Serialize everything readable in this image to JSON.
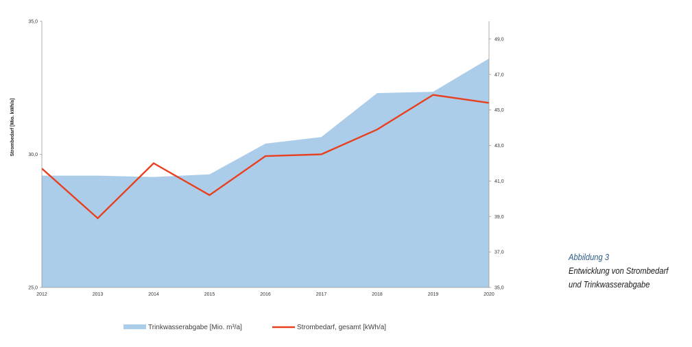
{
  "chart_data": {
    "type": "area",
    "x": [
      "2012",
      "2013",
      "2014",
      "2015",
      "2016",
      "2017",
      "2018",
      "2019",
      "2020"
    ],
    "ylabel": "Strombedarf [Mio. kWh/a]",
    "ylim_left": [
      25,
      35
    ],
    "yticks_left": [
      "25,0",
      "30,0",
      "35,0"
    ],
    "ylim_right": [
      35,
      50
    ],
    "yticks_right": [
      "35,0",
      "37,0",
      "39,0",
      "41,0",
      "43,0",
      "45,0",
      "47,0",
      "49,0"
    ],
    "grid": false,
    "legend_position": "bottom",
    "series": [
      {
        "name": "Trinkwasserabgabe [Mio. m³/a]",
        "type": "area",
        "axis": "left",
        "color": "#abcde9",
        "values": [
          29.2,
          29.2,
          29.15,
          29.25,
          30.4,
          30.65,
          32.3,
          32.35,
          33.6
        ]
      },
      {
        "name": "Strombedarf, gesamt [kWh/a]",
        "type": "line",
        "axis": "right",
        "color": "#e8401e",
        "values": [
          41.7,
          38.9,
          42.0,
          40.2,
          42.4,
          42.5,
          43.9,
          45.85,
          45.4
        ]
      }
    ]
  },
  "caption": {
    "label": "Abbildung 3",
    "title_line1": "Entwicklung von Strombedarf",
    "title_line2": "und Trinkwasserabgabe"
  }
}
